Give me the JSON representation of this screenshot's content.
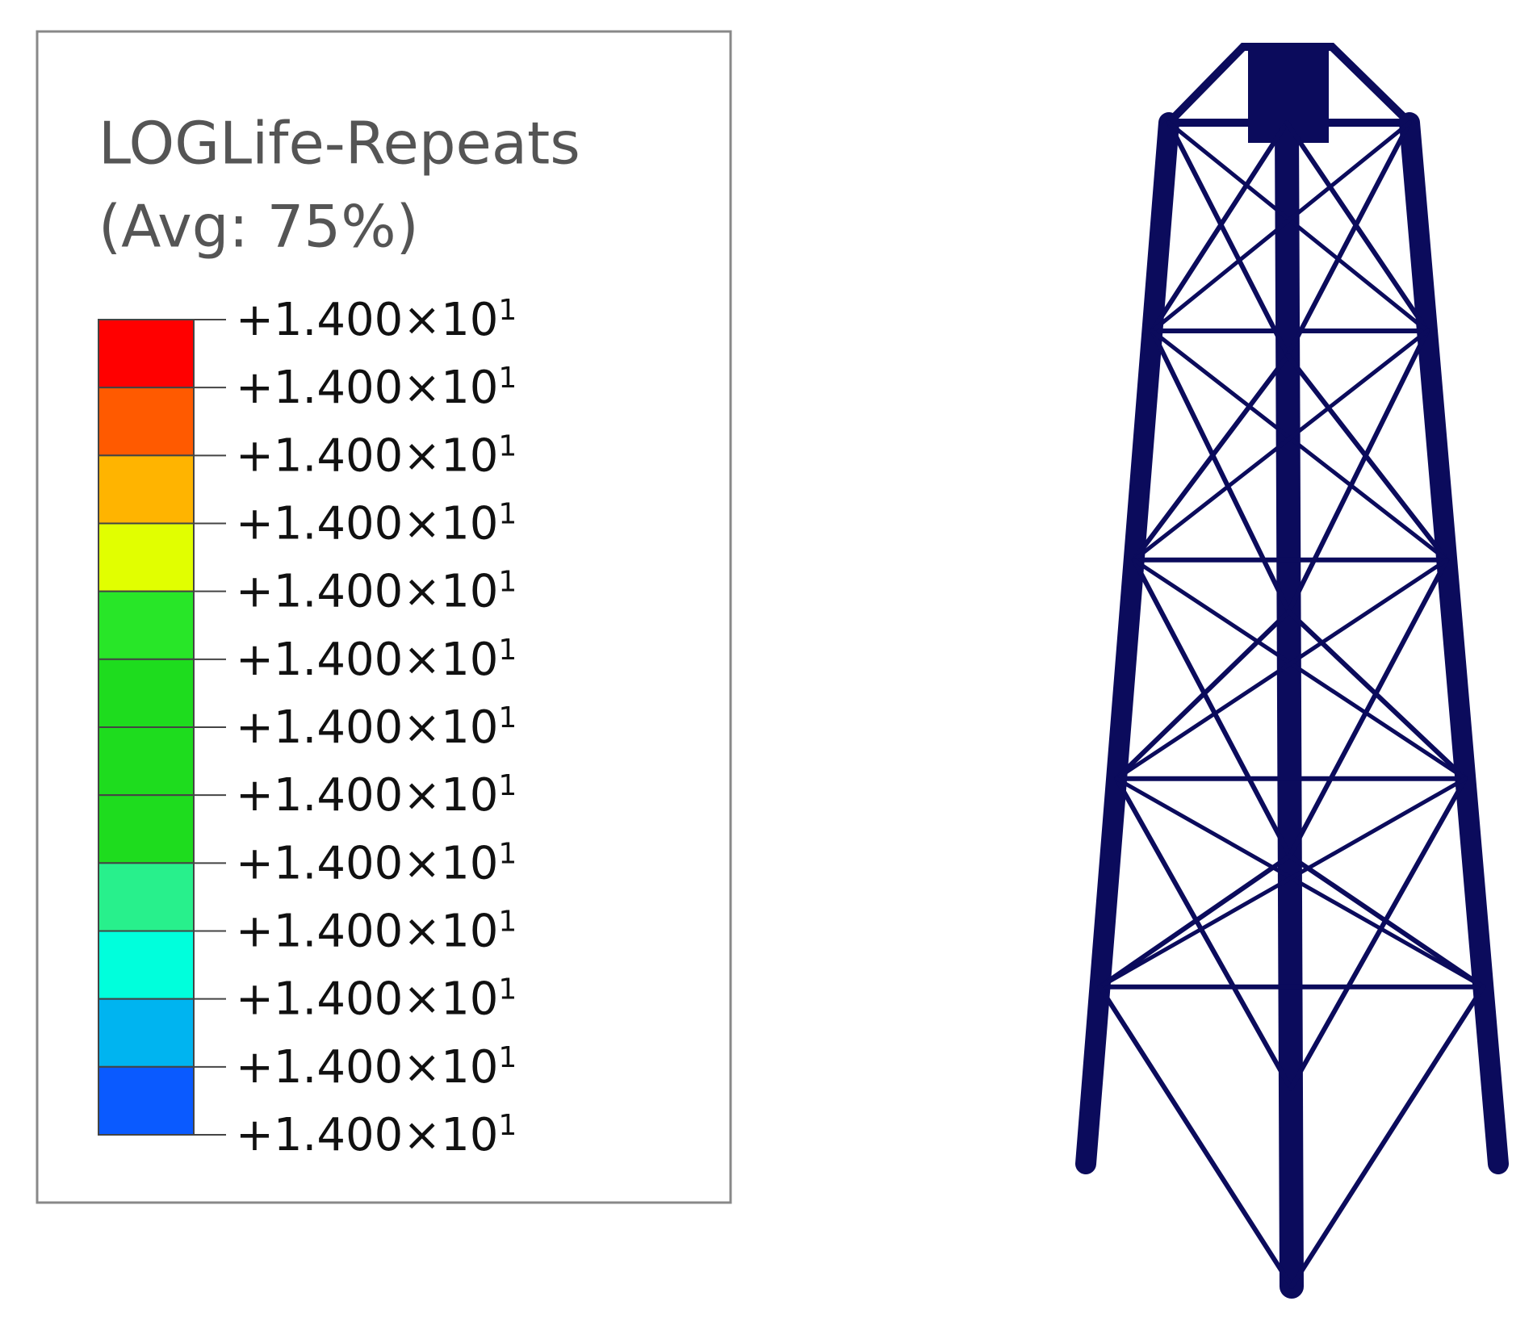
{
  "legend": {
    "title": "LOGLife-Repeats",
    "subtitle": "(Avg: 75%)",
    "colors": [
      "#ff0000",
      "#ff5a00",
      "#ffb400",
      "#e1ff00",
      "#28e628",
      "#1edc1e",
      "#1edc1e",
      "#1edc1e",
      "#28f08c",
      "#00ffdc",
      "#00b4f0",
      "#0a5aff",
      "#0000ff"
    ],
    "labels": [
      {
        "mantissa": "+1.400×10",
        "exponent": "1"
      },
      {
        "mantissa": "+1.400×10",
        "exponent": "1"
      },
      {
        "mantissa": "+1.400×10",
        "exponent": "1"
      },
      {
        "mantissa": "+1.400×10",
        "exponent": "1"
      },
      {
        "mantissa": "+1.400×10",
        "exponent": "1"
      },
      {
        "mantissa": "+1.400×10",
        "exponent": "1"
      },
      {
        "mantissa": "+1.400×10",
        "exponent": "1"
      },
      {
        "mantissa": "+1.400×10",
        "exponent": "1"
      },
      {
        "mantissa": "+1.400×10",
        "exponent": "1"
      },
      {
        "mantissa": "+1.400×10",
        "exponent": "1"
      },
      {
        "mantissa": "+1.400×10",
        "exponent": "1"
      },
      {
        "mantissa": "+1.400×10",
        "exponent": "1"
      },
      {
        "mantissa": "+1.400×10",
        "exponent": "1"
      }
    ]
  }
}
